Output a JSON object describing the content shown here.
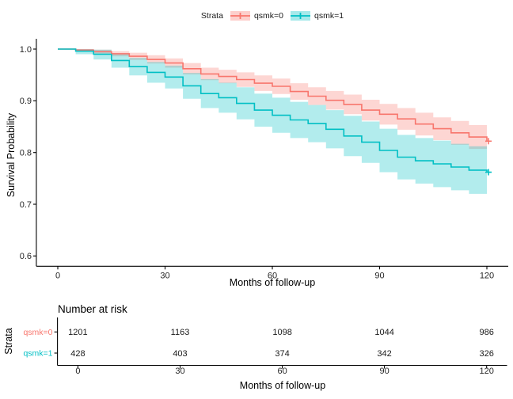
{
  "figure": {
    "legend": {
      "title": "Strata",
      "items": [
        {
          "label": "qsmk=0",
          "color": "#F8766D"
        },
        {
          "label": "qsmk=1",
          "color": "#00BFC4"
        }
      ]
    },
    "main_plot": {
      "ylabel": "Survival Probability",
      "xlabel": "Months of follow-up"
    },
    "risk_table": {
      "title": "Number at risk",
      "ylabel": "Strata",
      "xlabel": "Months of follow-up"
    }
  },
  "chart_data": {
    "type": "line",
    "subtype": "kaplan_meier_step_with_confidence_bands",
    "title": "",
    "xlabel": "Months of follow-up",
    "ylabel": "Survival Probability",
    "xlim": [
      0,
      120
    ],
    "ylim": [
      0.6,
      1.0
    ],
    "x_ticks": [
      0,
      30,
      60,
      90,
      120
    ],
    "x_tick_labels": [
      "0",
      "30",
      "60",
      "90",
      "120"
    ],
    "y_ticks": [
      1.0,
      0.9,
      0.8,
      0.7,
      0.6
    ],
    "y_tick_labels": [
      "1.0",
      "0.9",
      "0.8",
      "0.7",
      "0.6"
    ],
    "grid": false,
    "legend_position": "top",
    "legend_title": "Strata",
    "band_opacity": 0.3,
    "censor_marks_at_end": true,
    "series": [
      {
        "name": "qsmk=0",
        "color": "#F8766D",
        "x": [
          0,
          5,
          10,
          15,
          20,
          25,
          30,
          35,
          40,
          45,
          50,
          55,
          60,
          65,
          70,
          75,
          80,
          85,
          90,
          95,
          100,
          105,
          110,
          115,
          120
        ],
        "survival": [
          1.0,
          0.998,
          0.995,
          0.991,
          0.986,
          0.98,
          0.973,
          0.962,
          0.952,
          0.947,
          0.941,
          0.934,
          0.928,
          0.918,
          0.909,
          0.901,
          0.893,
          0.882,
          0.874,
          0.865,
          0.855,
          0.846,
          0.838,
          0.83,
          0.822
        ],
        "ci_upper": [
          1.0,
          1.0,
          0.999,
          0.996,
          0.993,
          0.988,
          0.982,
          0.973,
          0.964,
          0.96,
          0.955,
          0.949,
          0.943,
          0.934,
          0.926,
          0.919,
          0.912,
          0.902,
          0.894,
          0.886,
          0.877,
          0.868,
          0.861,
          0.853,
          0.846
        ],
        "ci_lower": [
          1.0,
          0.996,
          0.991,
          0.986,
          0.979,
          0.972,
          0.964,
          0.951,
          0.94,
          0.934,
          0.927,
          0.919,
          0.913,
          0.902,
          0.892,
          0.883,
          0.874,
          0.862,
          0.854,
          0.844,
          0.833,
          0.824,
          0.815,
          0.807,
          0.798
        ]
      },
      {
        "name": "qsmk=1",
        "color": "#00BFC4",
        "x": [
          0,
          5,
          10,
          15,
          20,
          25,
          30,
          35,
          40,
          45,
          50,
          55,
          60,
          65,
          70,
          75,
          80,
          85,
          90,
          95,
          100,
          105,
          110,
          115,
          120
        ],
        "survival": [
          1.0,
          0.996,
          0.99,
          0.978,
          0.966,
          0.955,
          0.946,
          0.929,
          0.914,
          0.906,
          0.895,
          0.882,
          0.872,
          0.863,
          0.856,
          0.845,
          0.832,
          0.82,
          0.804,
          0.791,
          0.784,
          0.778,
          0.772,
          0.766,
          0.762
        ],
        "ci_upper": [
          1.0,
          1.0,
          0.999,
          0.992,
          0.983,
          0.975,
          0.968,
          0.954,
          0.942,
          0.935,
          0.926,
          0.914,
          0.906,
          0.898,
          0.892,
          0.882,
          0.871,
          0.86,
          0.846,
          0.834,
          0.828,
          0.823,
          0.817,
          0.812,
          0.808
        ],
        "ci_lower": [
          1.0,
          0.99,
          0.98,
          0.964,
          0.949,
          0.935,
          0.924,
          0.904,
          0.886,
          0.877,
          0.864,
          0.85,
          0.838,
          0.828,
          0.82,
          0.808,
          0.793,
          0.78,
          0.762,
          0.748,
          0.74,
          0.733,
          0.727,
          0.72,
          0.716
        ]
      }
    ],
    "number_at_risk": {
      "title": "Number at risk",
      "times": [
        0,
        30,
        60,
        90,
        120
      ],
      "rows": [
        {
          "label": "qsmk=0",
          "color": "#F8766D",
          "values": [
            1201,
            1163,
            1098,
            1044,
            986
          ]
        },
        {
          "label": "qsmk=1",
          "color": "#00BFC4",
          "values": [
            428,
            403,
            374,
            342,
            326
          ]
        }
      ]
    }
  }
}
